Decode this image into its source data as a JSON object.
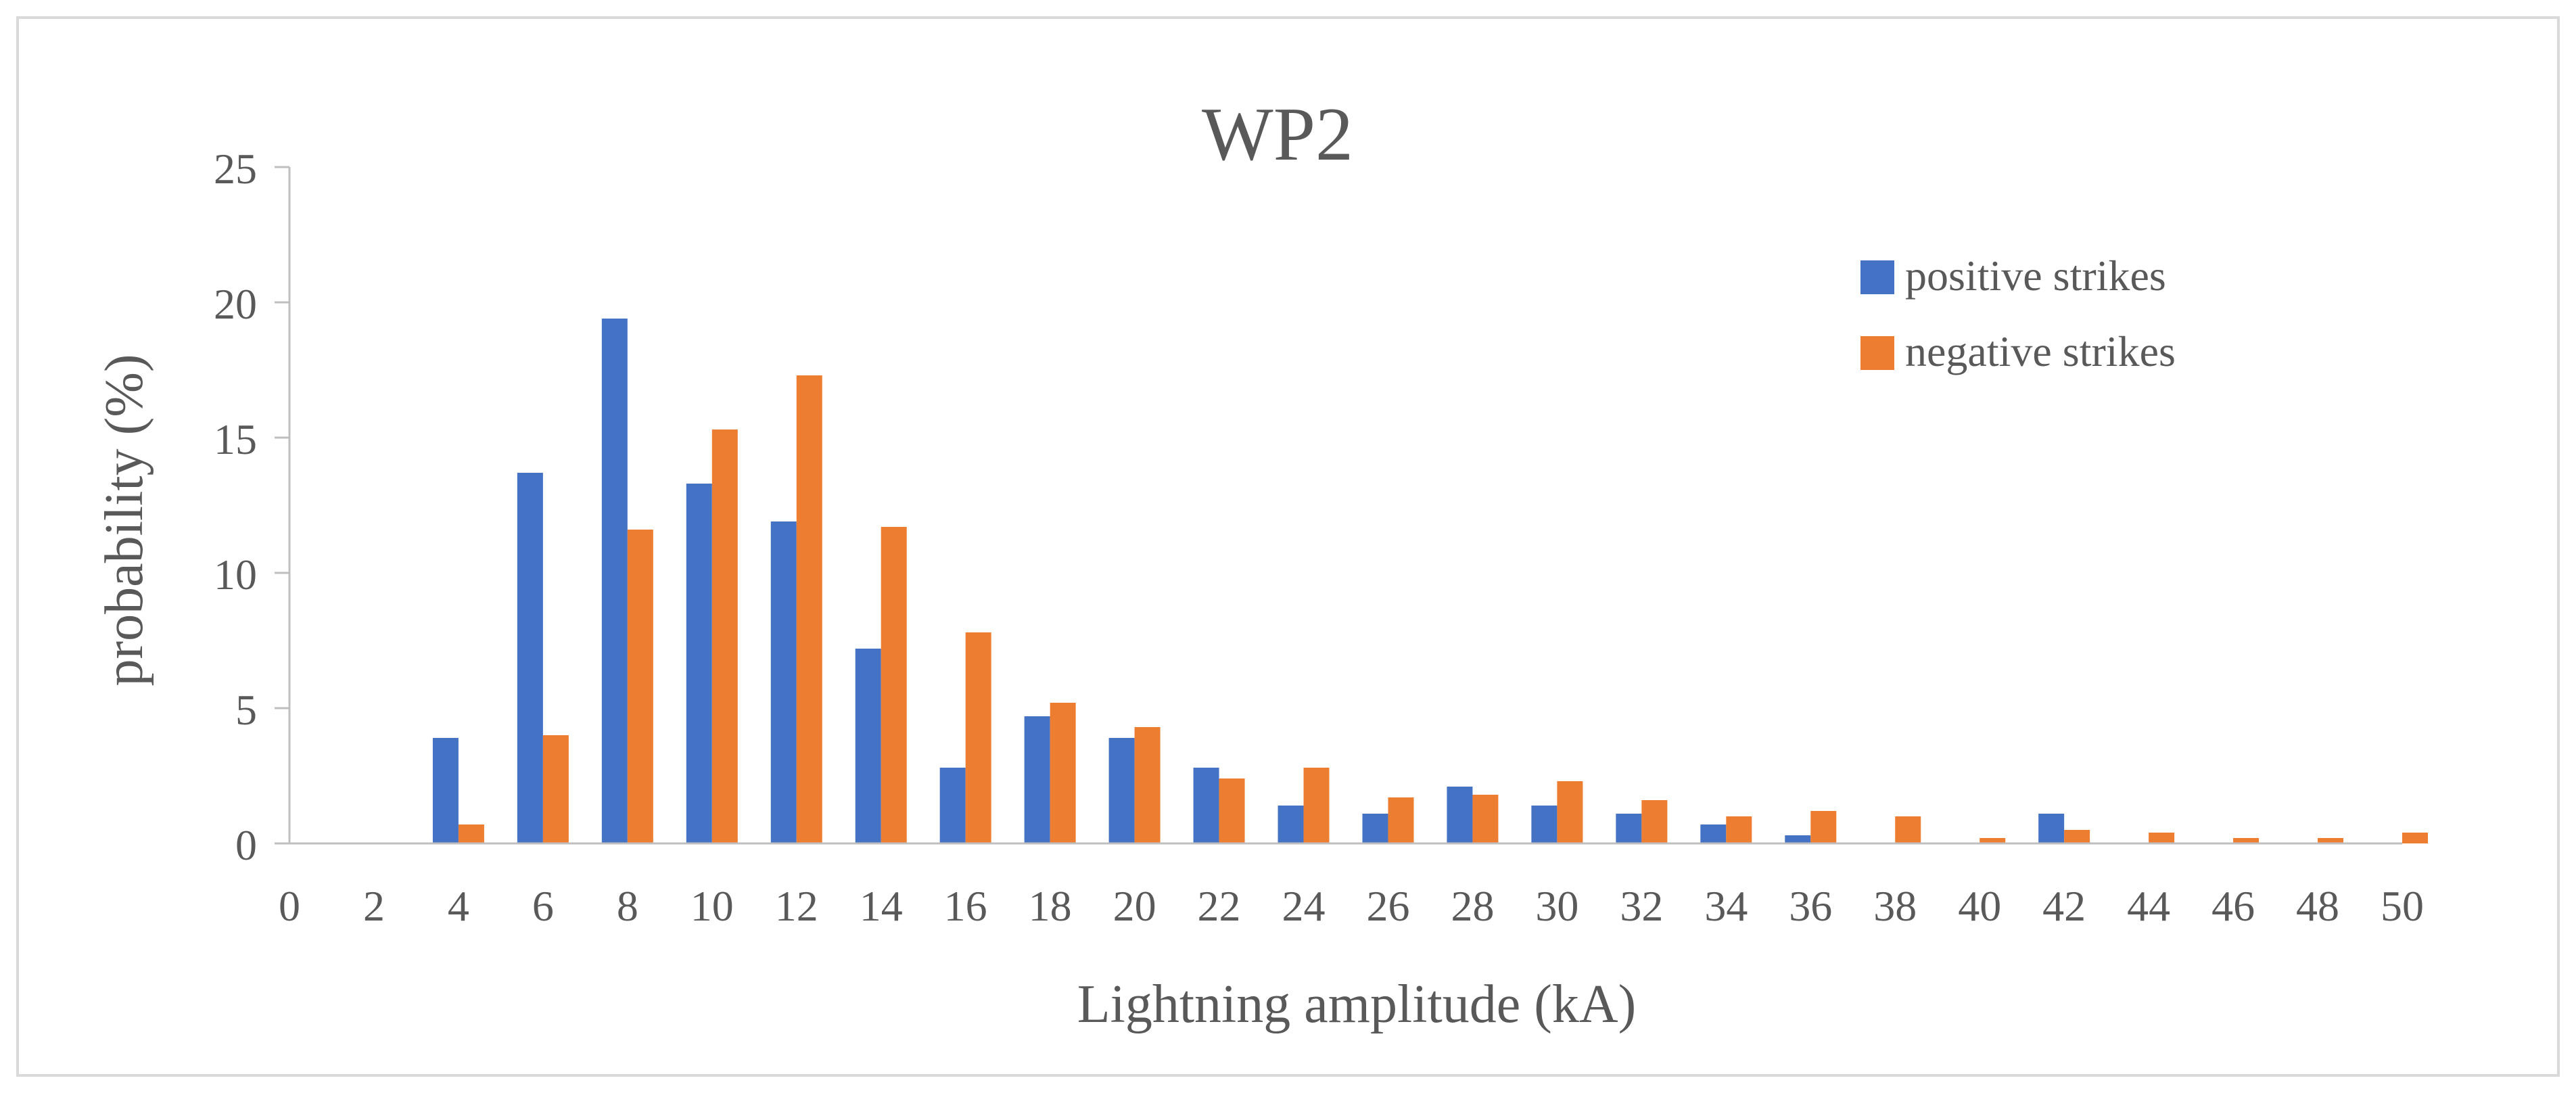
{
  "chart_data": {
    "type": "bar",
    "title": "WP2",
    "xlabel": "Lightning amplitude (kA)",
    "ylabel": "probability (%)",
    "ylim": [
      0,
      25
    ],
    "yticks": [
      0,
      5,
      10,
      15,
      20,
      25
    ],
    "xlim": [
      0,
      50
    ],
    "xticks": [
      "0",
      "2",
      "4",
      "6",
      "8",
      "10",
      "12",
      "14",
      "16",
      "18",
      "20",
      "22",
      "24",
      "26",
      "28",
      "30",
      "32",
      "34",
      "36",
      "38",
      "40",
      "42",
      "44",
      "46",
      "48",
      "50"
    ],
    "bin_x": [
      2,
      4,
      6,
      8,
      10,
      12,
      14,
      16,
      18,
      20,
      22,
      24,
      26,
      28,
      30,
      32,
      34,
      36,
      38,
      40,
      42,
      44,
      46,
      48,
      50
    ],
    "grid": false,
    "legend_position": "top-right",
    "series": [
      {
        "name": "positive strikes",
        "color": "#4472c4",
        "values": [
          0,
          3.9,
          13.7,
          19.4,
          13.3,
          11.9,
          7.2,
          2.8,
          4.7,
          3.9,
          2.8,
          1.4,
          1.1,
          2.1,
          1.4,
          1.1,
          0.7,
          0.3,
          0,
          0,
          1.1,
          0,
          0,
          0,
          0
        ]
      },
      {
        "name": "negative strikes",
        "color": "#ed7d31",
        "values": [
          0,
          0.7,
          4.0,
          11.6,
          15.3,
          17.3,
          11.7,
          7.8,
          5.2,
          4.3,
          2.4,
          2.8,
          1.7,
          1.8,
          2.3,
          1.6,
          1.0,
          1.2,
          1.0,
          0.2,
          0.5,
          0.4,
          0.2,
          0.2,
          0.4
        ]
      }
    ]
  }
}
